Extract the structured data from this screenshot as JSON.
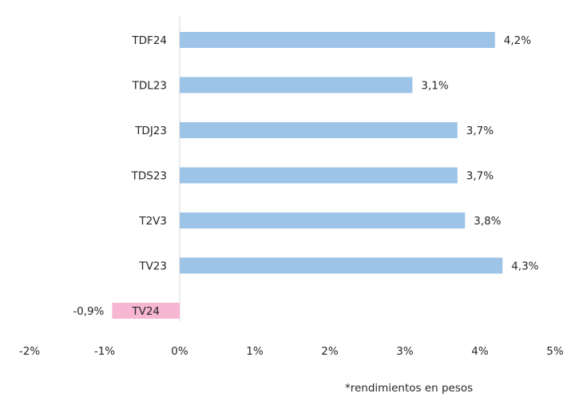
{
  "chart_data": {
    "type": "bar",
    "orientation": "horizontal",
    "categories": [
      "TDF24",
      "TDL23",
      "TDJ23",
      "TDS23",
      "T2V3",
      "TV23",
      "TV24"
    ],
    "values": [
      4.2,
      3.1,
      3.7,
      3.7,
      3.8,
      4.3,
      -0.9
    ],
    "data_labels": [
      "4,2%",
      "3,1%",
      "3,7%",
      "3,7%",
      "3,8%",
      "4,3%",
      "-0,9%"
    ],
    "x_ticks": [
      -2,
      -1,
      0,
      1,
      2,
      3,
      4,
      5
    ],
    "x_tick_labels": [
      "-2%",
      "-1%",
      "0%",
      "1%",
      "2%",
      "3%",
      "4%",
      "5%"
    ],
    "xlim": [
      -2,
      5
    ],
    "title": "",
    "xlabel": "",
    "ylabel": "",
    "grid": false,
    "legend": "none",
    "colors": {
      "positive": "#9dc3e6",
      "negative": "#f7b6d2",
      "axis": "#d9d9d9"
    }
  },
  "footnote": "*rendimientos en pesos"
}
